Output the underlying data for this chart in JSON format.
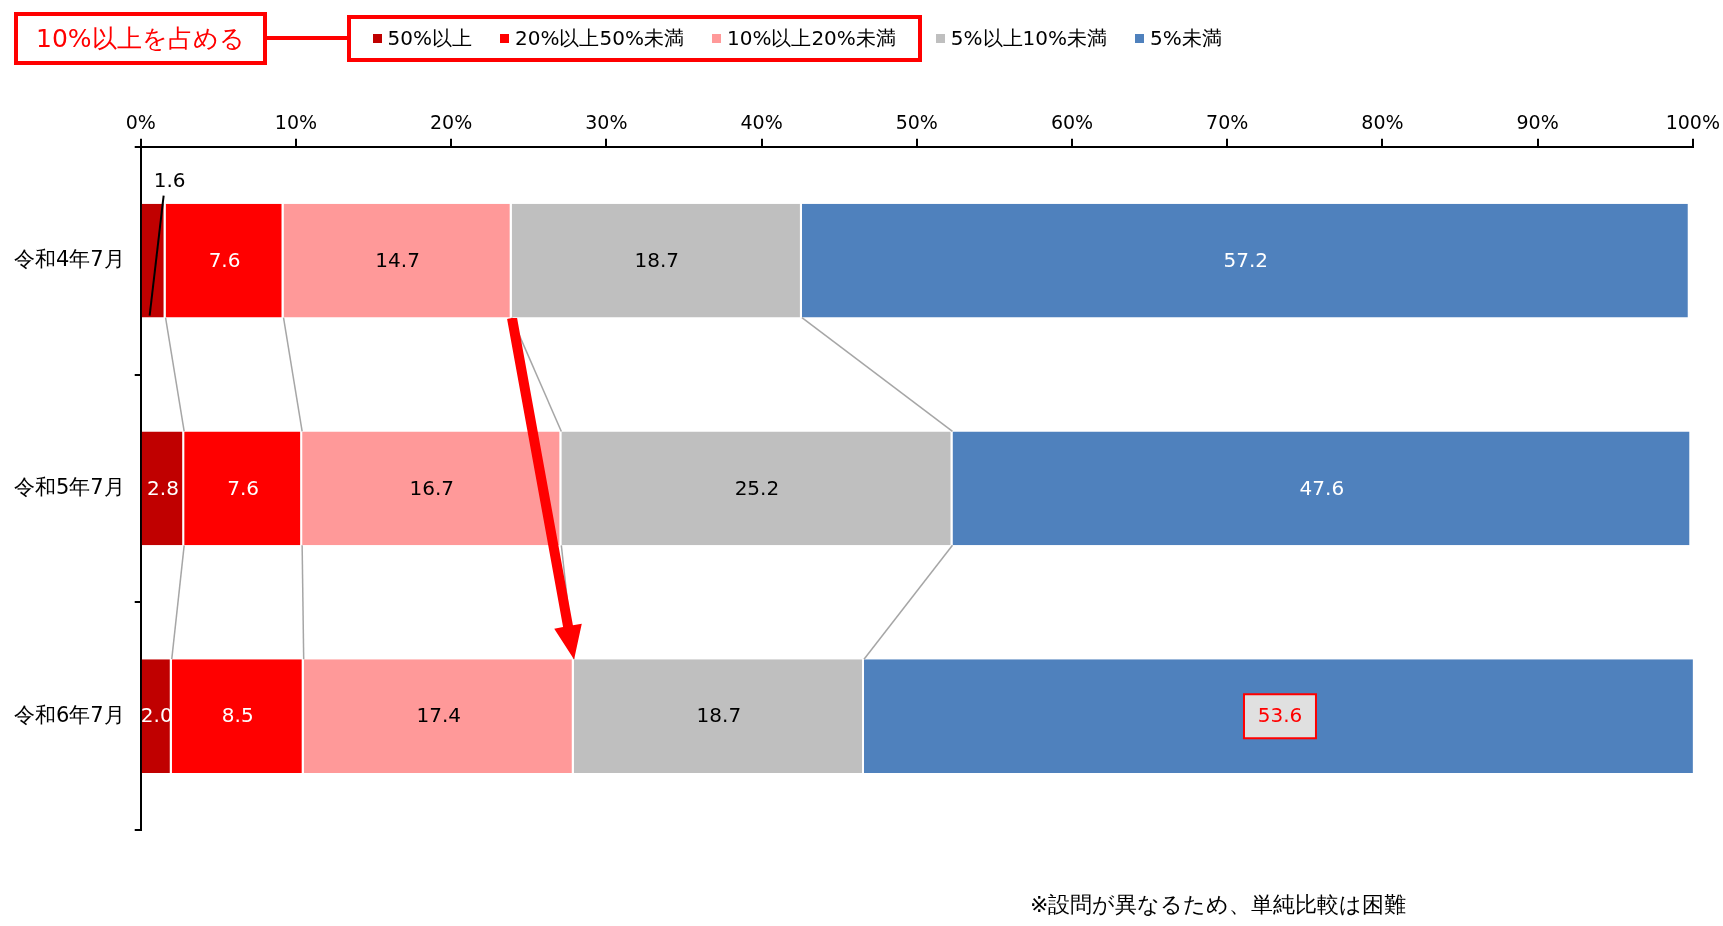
{
  "chart_data": {
    "type": "bar",
    "orientation": "horizontal",
    "stacked": true,
    "categories": [
      "令和4年7月",
      "令和5年7月",
      "令和6年7月"
    ],
    "series": [
      {
        "name": "50%以上",
        "color": "#c00000",
        "values": [
          1.6,
          2.8,
          2.0
        ],
        "value_labels": [
          "1.6",
          "2.8",
          "2.0"
        ]
      },
      {
        "name": "20%以上50%未満",
        "color": "#ff0000",
        "values": [
          7.6,
          7.6,
          8.5
        ],
        "value_labels": [
          "7.6",
          "7.6",
          "8.5"
        ]
      },
      {
        "name": "10%以上20%未満",
        "color": "#ff9999",
        "values": [
          14.7,
          16.7,
          17.4
        ],
        "value_labels": [
          "14.7",
          "16.7",
          "17.4"
        ]
      },
      {
        "name": "5%以上10%未満",
        "color": "#bfbfbf",
        "values": [
          18.7,
          25.2,
          18.7
        ],
        "value_labels": [
          "18.7",
          "25.2",
          "18.7"
        ]
      },
      {
        "name": "5%未満",
        "color": "#4f81bd",
        "values": [
          57.2,
          47.6,
          53.6
        ],
        "value_labels": [
          "57.2",
          "47.6",
          "53.6"
        ]
      }
    ],
    "xlim": [
      0,
      100
    ],
    "xticks": [
      {
        "value": 0,
        "label": "0%"
      },
      {
        "value": 10,
        "label": "10%"
      },
      {
        "value": 20,
        "label": "20%"
      },
      {
        "value": 30,
        "label": "30%"
      },
      {
        "value": 40,
        "label": "40%"
      },
      {
        "value": 50,
        "label": "50%"
      },
      {
        "value": 60,
        "label": "60%"
      },
      {
        "value": 70,
        "label": "70%"
      },
      {
        "value": 80,
        "label": "80%"
      },
      {
        "value": 90,
        "label": "90%"
      },
      {
        "value": 100,
        "label": "100%"
      }
    ],
    "grid": false,
    "legend": "top",
    "annotations": [
      "10%以上を占める",
      "※設問が異なるため、単純比較は困難"
    ]
  }
}
